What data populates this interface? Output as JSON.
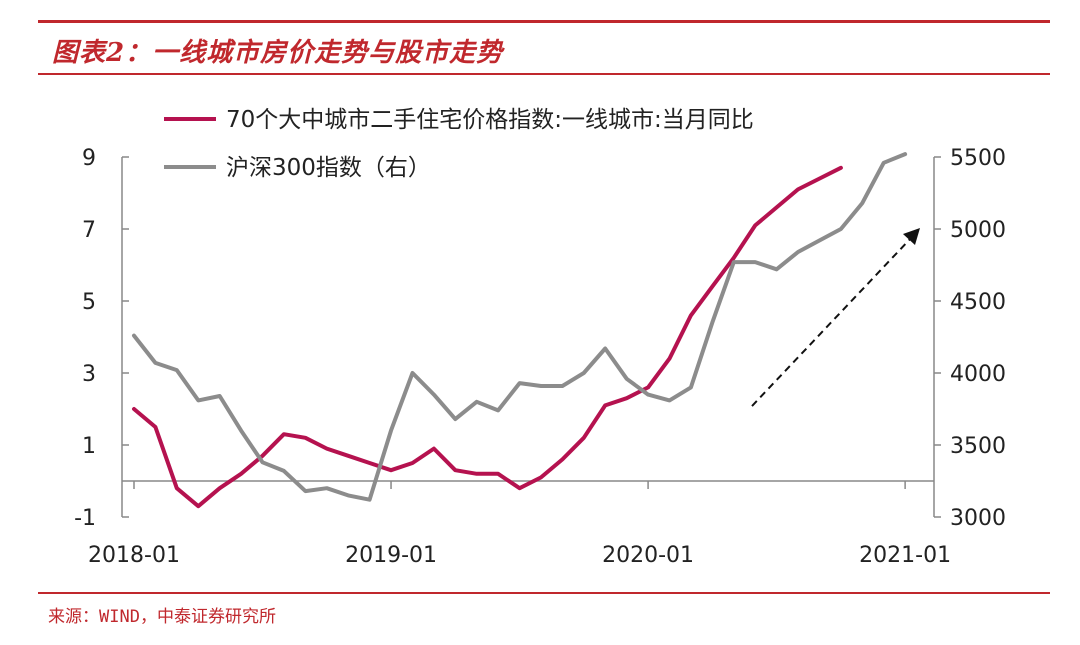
{
  "title": "图表2：一线城市房价走势与股市走势",
  "source": "来源：WIND，中泰证券研究所",
  "colors": {
    "accent": "#c0282d",
    "series1": "#b5124f",
    "series2": "#8c8c8c",
    "axis": "#888888"
  },
  "chart_data": {
    "type": "line",
    "legend_position": "top",
    "grid": false,
    "x_ticks": [
      "2018-01",
      "2019-01",
      "2020-01",
      "2021-01"
    ],
    "y_left": {
      "ticks": [
        "9",
        "7",
        "5",
        "3",
        "1",
        "-1"
      ],
      "ylim": [
        -1,
        9
      ]
    },
    "y_right": {
      "ticks": [
        "5500",
        "5000",
        "4500",
        "4000",
        "3500",
        "3000"
      ],
      "ylim": [
        3000,
        5500
      ]
    },
    "annotation": "dashed arrow indicating upward trend",
    "series": [
      {
        "name": "70个大中城市二手住宅价格指数:一线城市:当月同比",
        "axis": "left",
        "x": [
          "2018-01",
          "2018-02",
          "2018-03",
          "2018-04",
          "2018-05",
          "2018-06",
          "2018-07",
          "2018-08",
          "2018-09",
          "2018-10",
          "2018-11",
          "2018-12",
          "2019-01",
          "2019-02",
          "2019-03",
          "2019-04",
          "2019-05",
          "2019-06",
          "2019-07",
          "2019-08",
          "2019-09",
          "2019-10",
          "2019-11",
          "2019-12",
          "2020-01",
          "2020-02",
          "2020-03",
          "2020-04",
          "2020-05",
          "2020-06",
          "2020-07",
          "2020-08",
          "2020-09",
          "2020-10",
          "2020-11",
          "2020-12"
        ],
        "values": [
          2.0,
          1.5,
          -0.2,
          -0.7,
          -0.2,
          0.2,
          0.7,
          1.3,
          1.2,
          0.9,
          0.7,
          0.5,
          0.3,
          0.5,
          0.9,
          0.3,
          0.2,
          0.2,
          -0.2,
          0.1,
          0.6,
          1.2,
          2.1,
          2.3,
          2.6,
          3.4,
          4.6,
          5.4,
          6.2,
          7.1,
          7.6,
          8.1,
          8.4,
          8.7,
          null,
          null
        ]
      },
      {
        "name": "沪深300指数（右）",
        "axis": "right",
        "x": [
          "2018-01",
          "2018-02",
          "2018-03",
          "2018-04",
          "2018-05",
          "2018-06",
          "2018-07",
          "2018-08",
          "2018-09",
          "2018-10",
          "2018-11",
          "2018-12",
          "2019-01",
          "2019-02",
          "2019-03",
          "2019-04",
          "2019-05",
          "2019-06",
          "2019-07",
          "2019-08",
          "2019-09",
          "2019-10",
          "2019-11",
          "2019-12",
          "2020-01",
          "2020-02",
          "2020-03",
          "2020-04",
          "2020-05",
          "2020-06",
          "2020-07",
          "2020-08",
          "2020-09",
          "2020-10",
          "2020-11",
          "2020-12",
          "2021-01"
        ],
        "values": [
          4260,
          4070,
          4020,
          3810,
          3840,
          3600,
          3380,
          3320,
          3180,
          3200,
          3150,
          3120,
          3600,
          4000,
          3850,
          3680,
          3800,
          3740,
          3930,
          3910,
          3910,
          4000,
          4170,
          3960,
          3850,
          3810,
          3900,
          4350,
          4770,
          4770,
          4720,
          4840,
          4920,
          5000,
          5180,
          5460,
          5520
        ]
      }
    ]
  }
}
